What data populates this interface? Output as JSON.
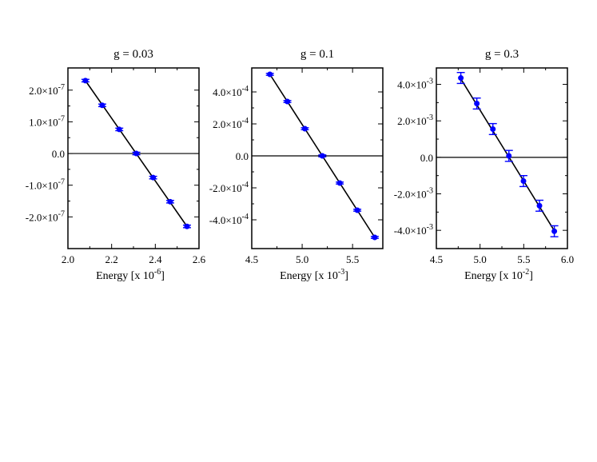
{
  "chart_data": [
    {
      "type": "scatter",
      "title": "g = 0.03",
      "xlabel": "Energy [x 10",
      "xlabel_exp": "-6",
      "xlim": [
        2.0,
        2.6
      ],
      "ylim": [
        -3e-07,
        2.7e-07
      ],
      "xticks": [
        2.0,
        2.2,
        2.4,
        2.6
      ],
      "xtick_labels": [
        "2.0",
        "2.2",
        "2.4",
        "2.6"
      ],
      "yticks": [
        2e-07,
        1e-07,
        0,
        -1e-07,
        -2e-07
      ],
      "ytick_mant": [
        "2.0×10",
        "1.0×10",
        "0.0",
        "-1.0×10",
        "-2.0×10"
      ],
      "ytick_exp": [
        "-7",
        "-7",
        "",
        "-7",
        "-7"
      ],
      "fit_line": [
        [
          2.08,
          2.3e-07
        ],
        [
          2.545,
          -2.3e-07
        ]
      ],
      "zero_line": true,
      "points": [
        {
          "x": 2.08,
          "y": 2.3e-07,
          "err": 4e-09
        },
        {
          "x": 2.157,
          "y": 1.52e-07,
          "err": 4e-09
        },
        {
          "x": 2.235,
          "y": 7.6e-08,
          "err": 4e-09
        },
        {
          "x": 2.313,
          "y": 0.0,
          "err": 4e-09
        },
        {
          "x": 2.39,
          "y": -7.6e-08,
          "err": 4e-09
        },
        {
          "x": 2.468,
          "y": -1.52e-07,
          "err": 4e-09
        },
        {
          "x": 2.545,
          "y": -2.3e-07,
          "err": 4e-09
        }
      ],
      "point_color": "#0000ff"
    },
    {
      "type": "scatter",
      "title": "g = 0.1",
      "xlabel": "Energy [x 10",
      "xlabel_exp": "-3",
      "xlim": [
        4.5,
        5.8
      ],
      "ylim": [
        -0.00058,
        0.00055
      ],
      "xticks": [
        4.5,
        5.0,
        5.5
      ],
      "xtick_labels": [
        "4.5",
        "5.0",
        "5.5"
      ],
      "yticks": [
        0.0004,
        0.0002,
        0,
        -0.0002,
        -0.0004
      ],
      "ytick_mant": [
        "4.0×10",
        "2.0×10",
        "0.0",
        "-2.0×10",
        "-4.0×10"
      ],
      "ytick_exp": [
        "-4",
        "-4",
        "",
        "-4",
        "-4"
      ],
      "fit_line": [
        [
          4.68,
          0.00051
        ],
        [
          5.72,
          -0.00051
        ]
      ],
      "zero_line": true,
      "points": [
        {
          "x": 4.68,
          "y": 0.00051,
          "err": 6e-06
        },
        {
          "x": 4.853,
          "y": 0.00034,
          "err": 6e-06
        },
        {
          "x": 5.027,
          "y": 0.00017,
          "err": 6e-06
        },
        {
          "x": 5.2,
          "y": 0.0,
          "err": 6e-06
        },
        {
          "x": 5.373,
          "y": -0.00017,
          "err": 6e-06
        },
        {
          "x": 5.547,
          "y": -0.00034,
          "err": 6e-06
        },
        {
          "x": 5.72,
          "y": -0.00051,
          "err": 6e-06
        }
      ],
      "point_color": "#0000ff"
    },
    {
      "type": "scatter",
      "title": "g = 0.3",
      "xlabel": "Energy [x 10",
      "xlabel_exp": "-2",
      "xlim": [
        4.5,
        6.0
      ],
      "ylim": [
        -0.005,
        0.0049
      ],
      "xticks": [
        4.5,
        5.0,
        5.5,
        6.0
      ],
      "xtick_labels": [
        "4.5",
        "5.0",
        "5.5",
        "6.0"
      ],
      "yticks": [
        0.004,
        0.002,
        0,
        -0.002,
        -0.004
      ],
      "ytick_mant": [
        "4.0×10",
        "2.0×10",
        "0.0",
        "-2.0×10",
        "-4.0×10"
      ],
      "ytick_exp": [
        "-3",
        "-3",
        "",
        "-3",
        "-3"
      ],
      "fit_line": [
        [
          4.78,
          0.0043
        ],
        [
          5.86,
          -0.0041
        ]
      ],
      "zero_line": true,
      "points": [
        {
          "x": 4.78,
          "y": 0.00435,
          "err": 0.0003
        },
        {
          "x": 4.963,
          "y": 0.00295,
          "err": 0.0003
        },
        {
          "x": 5.147,
          "y": 0.00155,
          "err": 0.0003
        },
        {
          "x": 5.33,
          "y": 8e-05,
          "err": 0.0003
        },
        {
          "x": 5.497,
          "y": -0.0013,
          "err": 0.0003
        },
        {
          "x": 5.68,
          "y": -0.00265,
          "err": 0.0003
        },
        {
          "x": 5.85,
          "y": -0.00405,
          "err": 0.0003
        }
      ],
      "point_color": "#0000ff"
    }
  ]
}
